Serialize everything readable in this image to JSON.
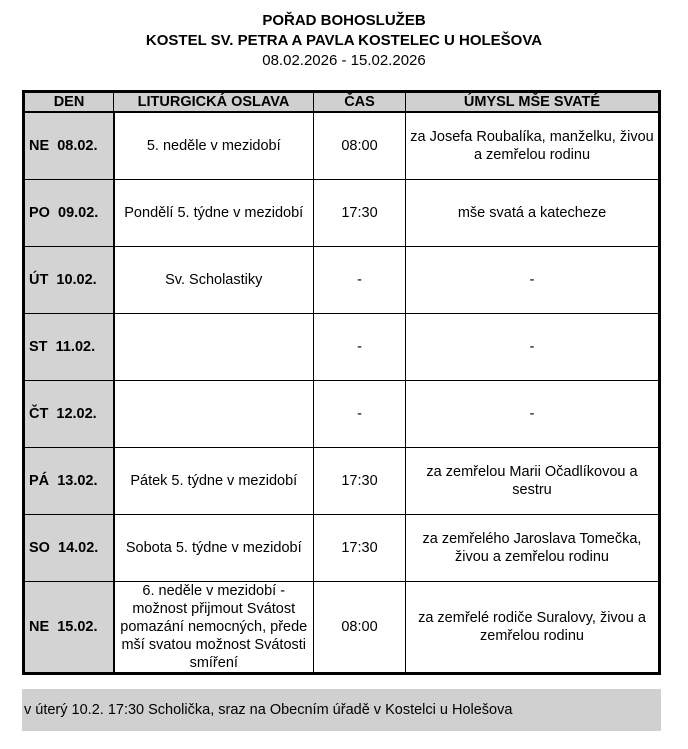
{
  "header": {
    "title": "POŘAD BOHOSLUŽEB",
    "church": "KOSTEL SV. PETRA A PAVLA KOSTELEC U HOLEŠOVA",
    "dates": "08.02.2026 - 15.02.2026"
  },
  "table": {
    "columns": [
      "DEN",
      "LITURGICKÁ OSLAVA",
      "ČAS",
      "ÚMYSL MŠE SVATÉ"
    ],
    "rows": [
      {
        "day": "NE  08.02.",
        "celebration": "5. neděle v mezidobí",
        "time": "08:00",
        "intention": "za Josefa Roubalíka, manželku, živou a zemřelou rodinu"
      },
      {
        "day": "PO  09.02.",
        "celebration": "Pondělí 5. týdne v mezidobí",
        "time": "17:30",
        "intention": "mše svatá a katecheze"
      },
      {
        "day": "ÚT  10.02.",
        "celebration": "Sv. Scholastiky",
        "time": "-",
        "intention": "-"
      },
      {
        "day": "ST  11.02.",
        "celebration": "",
        "time": "-",
        "intention": "-"
      },
      {
        "day": "ČT  12.02.",
        "celebration": "",
        "time": "-",
        "intention": "-"
      },
      {
        "day": "PÁ  13.02.",
        "celebration": "Pátek 5. týdne v mezidobí",
        "time": "17:30",
        "intention": "za zemřelou Marii Očadlíkovou a sestru"
      },
      {
        "day": "SO  14.02.",
        "celebration": "Sobota 5. týdne v mezidobí",
        "time": "17:30",
        "intention": "za zemřelého Jaroslava Tomečka, živou a zemřelou rodinu"
      },
      {
        "day": "NE  15.02.",
        "celebration": "6. neděle v mezidobí - možnost přijmout Svátost pomazání nemocných, přede mší svatou možnost Svátosti smíření",
        "time": "08:00",
        "intention": "za zemřelé rodiče Suralovy, živou a zemřelou rodinu"
      }
    ]
  },
  "note": "v úterý 10.2. 17:30 Scholička, sraz na Obecním úřadě v Kostelci u Holešova"
}
